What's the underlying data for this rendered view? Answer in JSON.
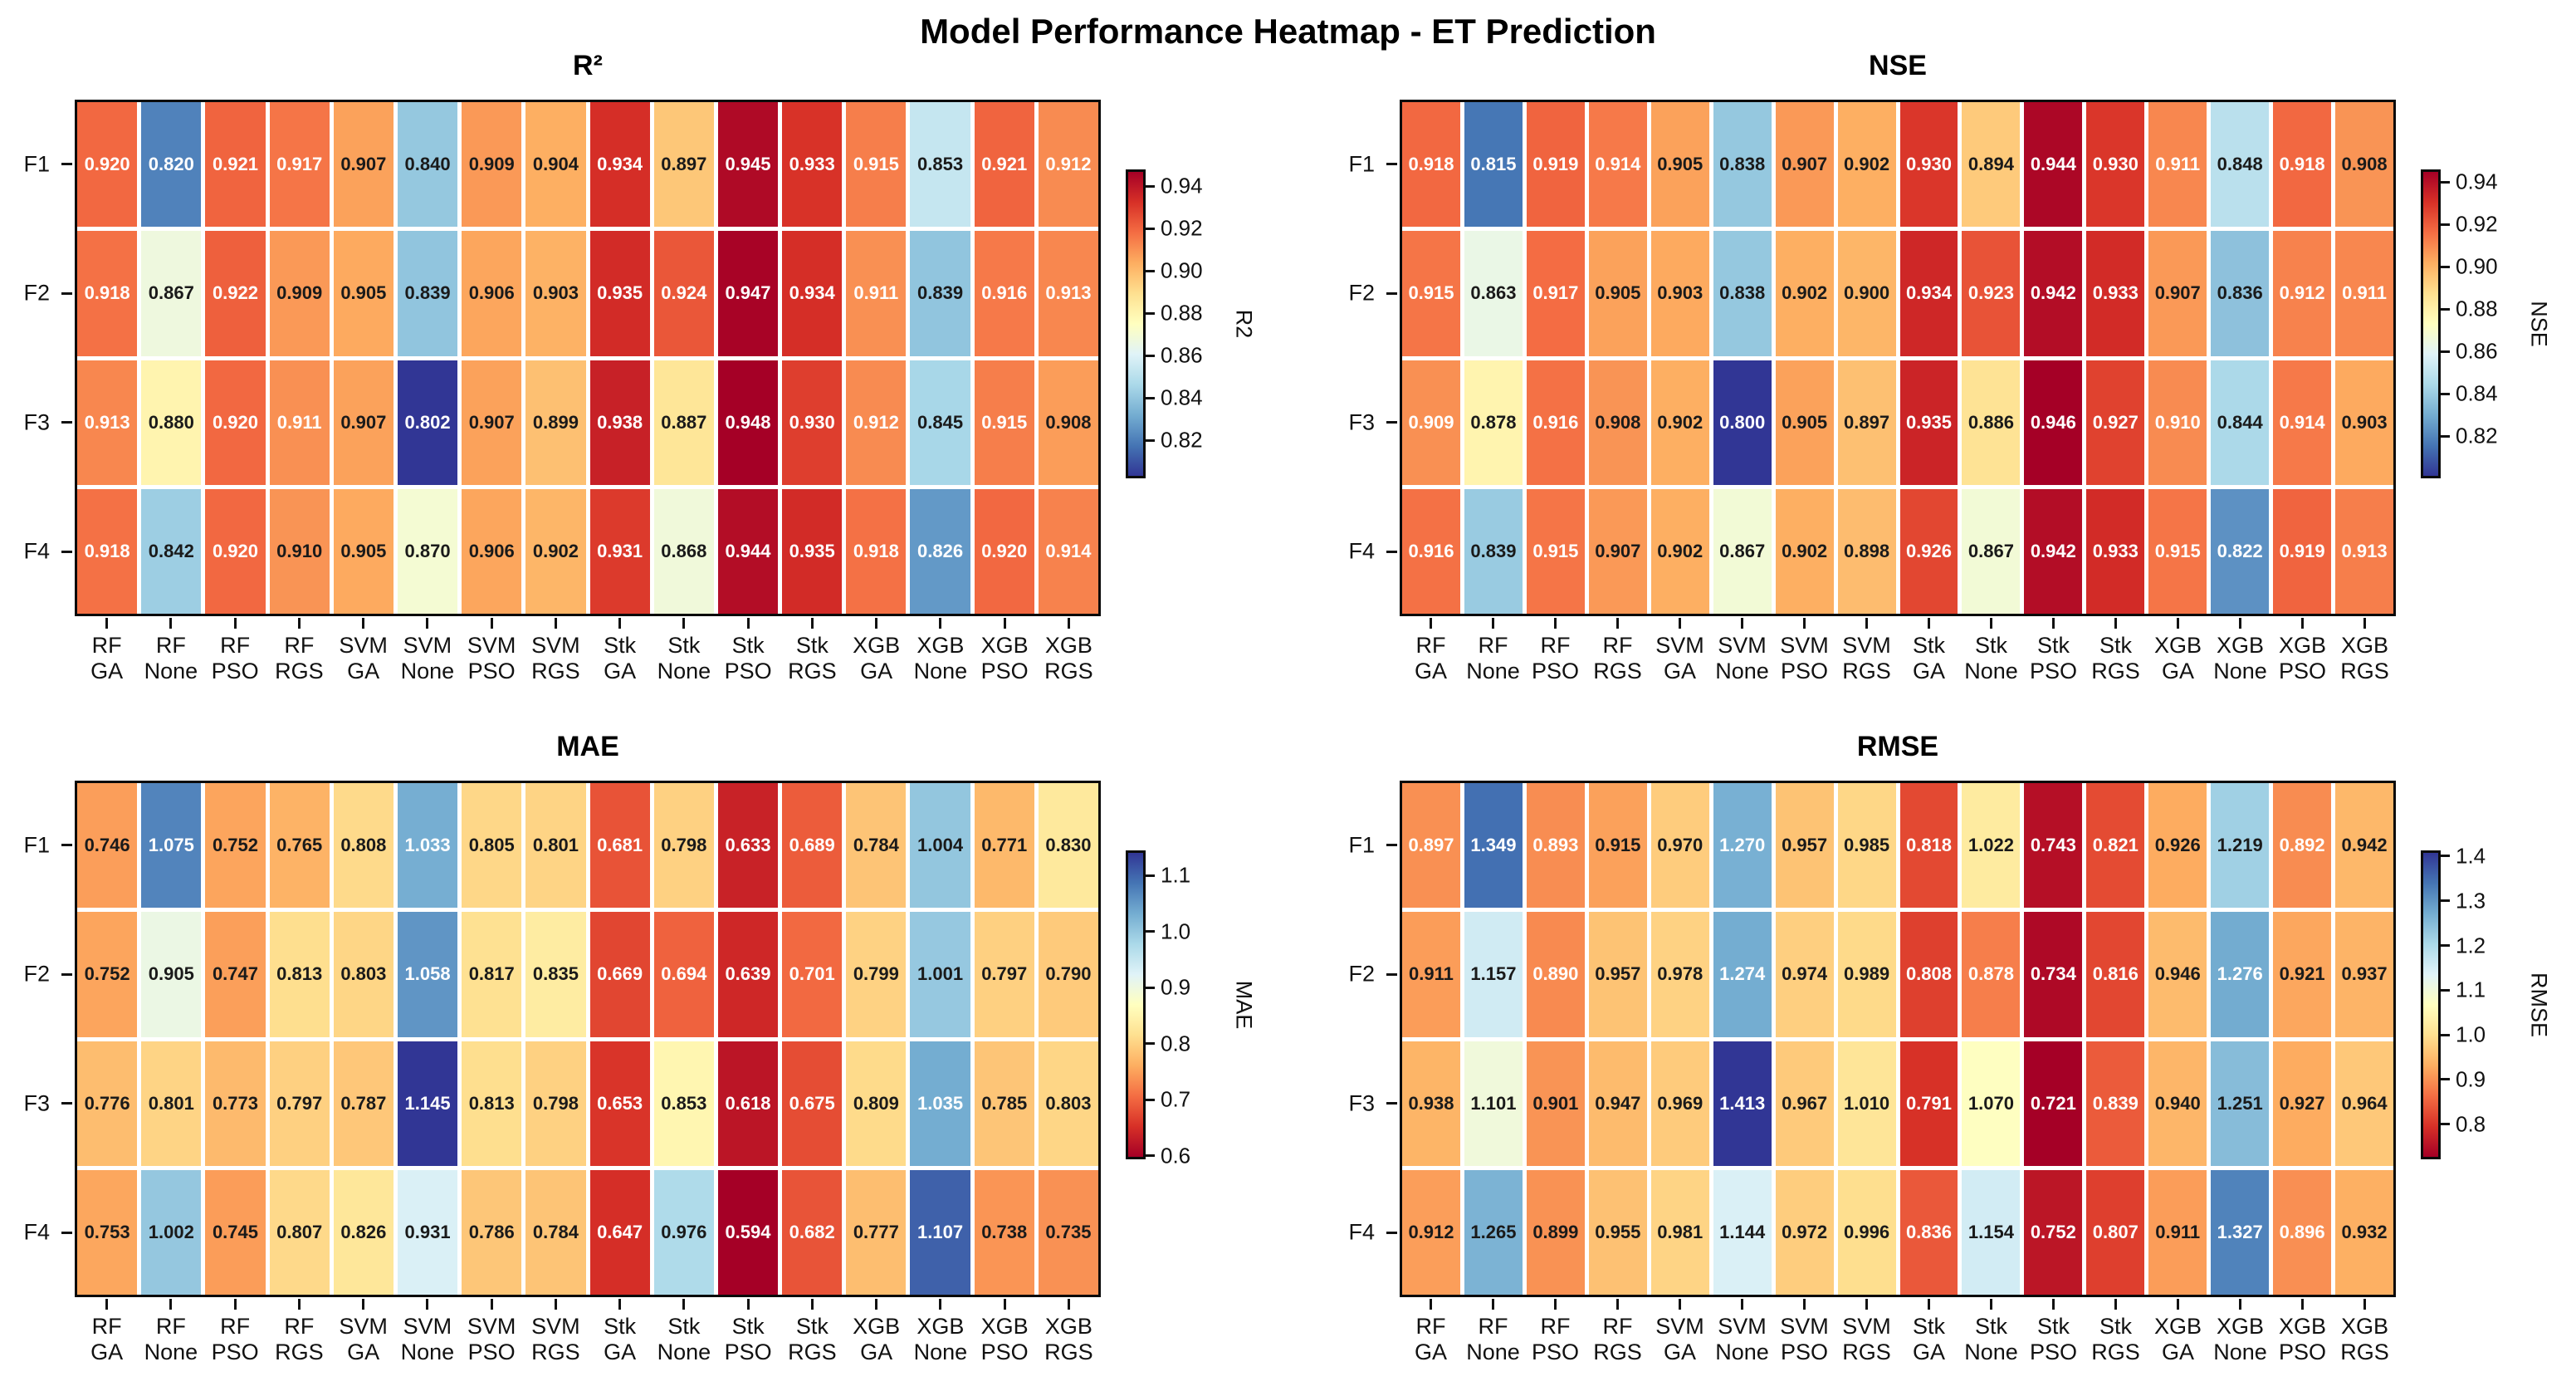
{
  "title": "Model Performance Heatmap - ET Prediction",
  "row_labels": [
    "F1",
    "F2",
    "F3",
    "F4"
  ],
  "col_labels": [
    [
      "RF",
      "GA"
    ],
    [
      "RF",
      "None"
    ],
    [
      "RF",
      "PSO"
    ],
    [
      "RF",
      "RGS"
    ],
    [
      "SVM",
      "GA"
    ],
    [
      "SVM",
      "None"
    ],
    [
      "SVM",
      "PSO"
    ],
    [
      "SVM",
      "RGS"
    ],
    [
      "Stk",
      "GA"
    ],
    [
      "Stk",
      "None"
    ],
    [
      "Stk",
      "PSO"
    ],
    [
      "Stk",
      "RGS"
    ],
    [
      "XGB",
      "GA"
    ],
    [
      "XGB",
      "None"
    ],
    [
      "XGB",
      "PSO"
    ],
    [
      "XGB",
      "RGS"
    ]
  ],
  "colors": {
    "colormap_rdylbu": [
      "#a50026",
      "#d73027",
      "#f46d43",
      "#fdae61",
      "#fee090",
      "#ffffbf",
      "#e0f3f8",
      "#abd9e9",
      "#74add1",
      "#4575b4",
      "#313695"
    ],
    "annot_dark": "#1a1a1a",
    "annot_light": "#ffffff",
    "spine": "#0a0a0a"
  },
  "chart_data": [
    {
      "type": "heatmap",
      "title": "R²",
      "cbar_label": "R2",
      "cmap": "RdYlBu_r",
      "vmin": 0.802,
      "vmax": 0.948,
      "categories": [
        "RF GA",
        "RF None",
        "RF PSO",
        "RF RGS",
        "SVM GA",
        "SVM None",
        "SVM PSO",
        "SVM RGS",
        "Stk GA",
        "Stk None",
        "Stk PSO",
        "Stk RGS",
        "XGB GA",
        "XGB None",
        "XGB PSO",
        "XGB RGS"
      ],
      "rows": [
        "F1",
        "F2",
        "F3",
        "F4"
      ],
      "values": [
        [
          0.92,
          0.82,
          0.921,
          0.917,
          0.907,
          0.84,
          0.909,
          0.904,
          0.934,
          0.897,
          0.945,
          0.933,
          0.915,
          0.853,
          0.921,
          0.912
        ],
        [
          0.918,
          0.867,
          0.922,
          0.909,
          0.905,
          0.839,
          0.906,
          0.903,
          0.935,
          0.924,
          0.947,
          0.934,
          0.911,
          0.839,
          0.916,
          0.913
        ],
        [
          0.913,
          0.88,
          0.92,
          0.911,
          0.907,
          0.802,
          0.907,
          0.899,
          0.938,
          0.887,
          0.948,
          0.93,
          0.912,
          0.845,
          0.915,
          0.908
        ],
        [
          0.918,
          0.842,
          0.92,
          0.91,
          0.905,
          0.87,
          0.906,
          0.902,
          0.931,
          0.868,
          0.944,
          0.935,
          0.918,
          0.826,
          0.92,
          0.914
        ]
      ],
      "cbar_ticks": [
        {
          "v": 0.82,
          "label": "0.82"
        },
        {
          "v": 0.84,
          "label": "0.84"
        },
        {
          "v": 0.86,
          "label": "0.86"
        },
        {
          "v": 0.88,
          "label": "0.88"
        },
        {
          "v": 0.9,
          "label": "0.90"
        },
        {
          "v": 0.92,
          "label": "0.92"
        },
        {
          "v": 0.94,
          "label": "0.94"
        }
      ]
    },
    {
      "type": "heatmap",
      "title": "NSE",
      "cbar_label": "NSE",
      "cmap": "RdYlBu_r",
      "vmin": 0.8,
      "vmax": 0.946,
      "categories": [
        "RF GA",
        "RF None",
        "RF PSO",
        "RF RGS",
        "SVM GA",
        "SVM None",
        "SVM PSO",
        "SVM RGS",
        "Stk GA",
        "Stk None",
        "Stk PSO",
        "Stk RGS",
        "XGB GA",
        "XGB None",
        "XGB PSO",
        "XGB RGS"
      ],
      "rows": [
        "F1",
        "F2",
        "F3",
        "F4"
      ],
      "values": [
        [
          0.918,
          0.815,
          0.919,
          0.914,
          0.905,
          0.838,
          0.907,
          0.902,
          0.93,
          0.894,
          0.944,
          0.93,
          0.911,
          0.848,
          0.918,
          0.908
        ],
        [
          0.915,
          0.863,
          0.917,
          0.905,
          0.903,
          0.838,
          0.902,
          0.9,
          0.934,
          0.923,
          0.942,
          0.933,
          0.907,
          0.836,
          0.912,
          0.911
        ],
        [
          0.909,
          0.878,
          0.916,
          0.908,
          0.902,
          0.8,
          0.905,
          0.897,
          0.935,
          0.886,
          0.946,
          0.927,
          0.91,
          0.844,
          0.914,
          0.903
        ],
        [
          0.916,
          0.839,
          0.915,
          0.907,
          0.902,
          0.867,
          0.902,
          0.898,
          0.926,
          0.867,
          0.942,
          0.933,
          0.915,
          0.822,
          0.919,
          0.913
        ]
      ],
      "cbar_ticks": [
        {
          "v": 0.82,
          "label": "0.82"
        },
        {
          "v": 0.84,
          "label": "0.84"
        },
        {
          "v": 0.86,
          "label": "0.86"
        },
        {
          "v": 0.88,
          "label": "0.88"
        },
        {
          "v": 0.9,
          "label": "0.90"
        },
        {
          "v": 0.92,
          "label": "0.92"
        },
        {
          "v": 0.94,
          "label": "0.94"
        }
      ]
    },
    {
      "type": "heatmap",
      "title": "MAE",
      "cbar_label": "MAE",
      "cmap": "RdYlBu",
      "vmin": 0.594,
      "vmax": 1.145,
      "categories": [
        "RF GA",
        "RF None",
        "RF PSO",
        "RF RGS",
        "SVM GA",
        "SVM None",
        "SVM PSO",
        "SVM RGS",
        "Stk GA",
        "Stk None",
        "Stk PSO",
        "Stk RGS",
        "XGB GA",
        "XGB None",
        "XGB PSO",
        "XGB RGS"
      ],
      "rows": [
        "F1",
        "F2",
        "F3",
        "F4"
      ],
      "values": [
        [
          0.746,
          1.075,
          0.752,
          0.765,
          0.808,
          1.033,
          0.805,
          0.801,
          0.681,
          0.798,
          0.633,
          0.689,
          0.784,
          1.004,
          0.771,
          0.83
        ],
        [
          0.752,
          0.905,
          0.747,
          0.813,
          0.803,
          1.058,
          0.817,
          0.835,
          0.669,
          0.694,
          0.639,
          0.701,
          0.799,
          1.001,
          0.797,
          0.79
        ],
        [
          0.776,
          0.801,
          0.773,
          0.797,
          0.787,
          1.145,
          0.813,
          0.798,
          0.653,
          0.853,
          0.618,
          0.675,
          0.809,
          1.035,
          0.785,
          0.803
        ],
        [
          0.753,
          1.002,
          0.745,
          0.807,
          0.826,
          0.931,
          0.786,
          0.784,
          0.647,
          0.976,
          0.594,
          0.682,
          0.777,
          1.107,
          0.738,
          0.735
        ]
      ],
      "cbar_ticks": [
        {
          "v": 0.6,
          "label": "0.6"
        },
        {
          "v": 0.7,
          "label": "0.7"
        },
        {
          "v": 0.8,
          "label": "0.8"
        },
        {
          "v": 0.9,
          "label": "0.9"
        },
        {
          "v": 1.0,
          "label": "1.0"
        },
        {
          "v": 1.1,
          "label": "1.1"
        }
      ]
    },
    {
      "type": "heatmap",
      "title": "RMSE",
      "cbar_label": "RMSE",
      "cmap": "RdYlBu",
      "vmin": 0.721,
      "vmax": 1.413,
      "categories": [
        "RF GA",
        "RF None",
        "RF PSO",
        "RF RGS",
        "SVM GA",
        "SVM None",
        "SVM PSO",
        "SVM RGS",
        "Stk GA",
        "Stk None",
        "Stk PSO",
        "Stk RGS",
        "XGB GA",
        "XGB None",
        "XGB PSO",
        "XGB RGS"
      ],
      "rows": [
        "F1",
        "F2",
        "F3",
        "F4"
      ],
      "values": [
        [
          0.897,
          1.349,
          0.893,
          0.915,
          0.97,
          1.27,
          0.957,
          0.985,
          0.818,
          1.022,
          0.743,
          0.821,
          0.926,
          1.219,
          0.892,
          0.942
        ],
        [
          0.911,
          1.157,
          0.89,
          0.957,
          0.978,
          1.274,
          0.974,
          0.989,
          0.808,
          0.878,
          0.734,
          0.816,
          0.946,
          1.276,
          0.921,
          0.937
        ],
        [
          0.938,
          1.101,
          0.901,
          0.947,
          0.969,
          1.413,
          0.967,
          1.01,
          0.791,
          1.07,
          0.721,
          0.839,
          0.94,
          1.251,
          0.927,
          0.964
        ],
        [
          0.912,
          1.265,
          0.899,
          0.955,
          0.981,
          1.144,
          0.972,
          0.996,
          0.836,
          1.154,
          0.752,
          0.807,
          0.911,
          1.327,
          0.896,
          0.932
        ]
      ],
      "cbar_ticks": [
        {
          "v": 0.8,
          "label": "0.8"
        },
        {
          "v": 0.9,
          "label": "0.9"
        },
        {
          "v": 1.0,
          "label": "1.0"
        },
        {
          "v": 1.1,
          "label": "1.1"
        },
        {
          "v": 1.2,
          "label": "1.2"
        },
        {
          "v": 1.3,
          "label": "1.3"
        },
        {
          "v": 1.4,
          "label": "1.4"
        }
      ]
    }
  ]
}
